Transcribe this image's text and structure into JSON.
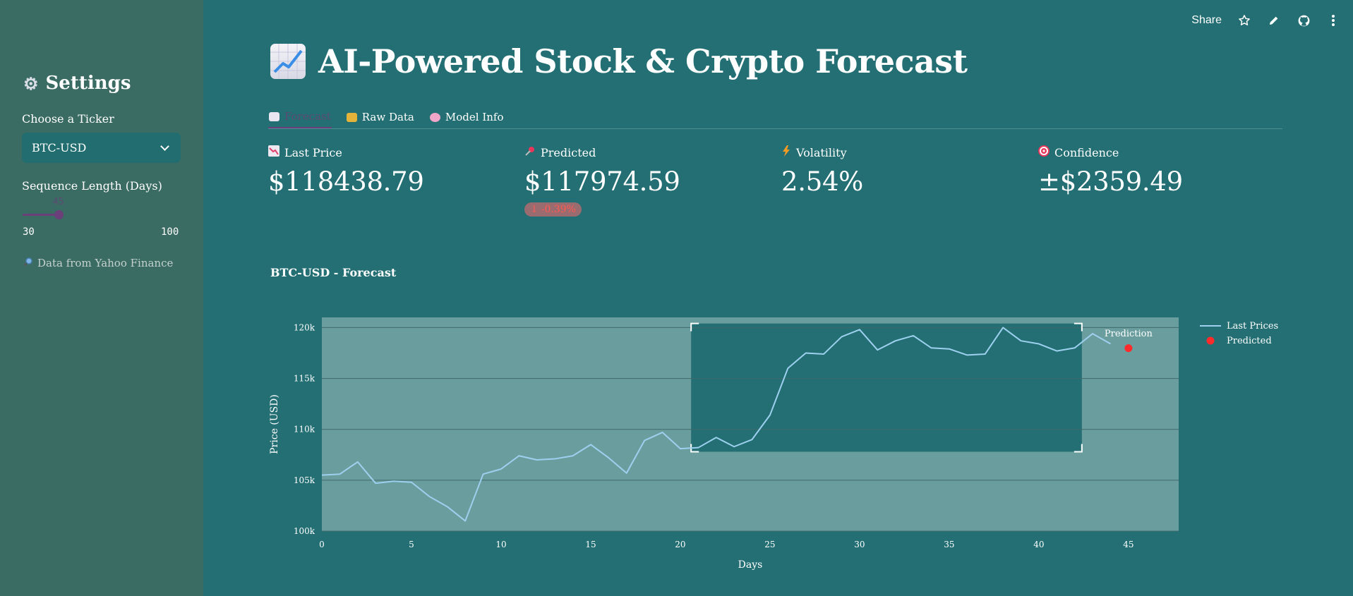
{
  "sidebar": {
    "title": "Settings",
    "ticker_label": "Choose a Ticker",
    "ticker_value": "BTC-USD",
    "seq_label": "Sequence Length (Days)",
    "seq_value": "45",
    "seq_value_num": 45,
    "seq_min": "30",
    "seq_max": "100",
    "note": "Data from Yahoo Finance"
  },
  "toolbar": {
    "share": "Share"
  },
  "page": {
    "title": "AI-Powered Stock & Crypto Forecast"
  },
  "tabs": [
    {
      "label": "Forecast",
      "active": true
    },
    {
      "label": "Raw Data",
      "active": false
    },
    {
      "label": "Model Info",
      "active": false
    }
  ],
  "metrics": [
    {
      "label": "Last Price",
      "value": "$118438.79"
    },
    {
      "label": "Predicted",
      "value": "$117974.59",
      "delta": "-0.39%"
    },
    {
      "label": "Volatility",
      "value": "2.54%"
    },
    {
      "label": "Confidence",
      "value": "±$2359.49"
    }
  ],
  "colors": {
    "background": "#236f74",
    "sidebar": "#3a6c63",
    "accent": "#6b3f7a",
    "line": "#9dd0ef",
    "predicted": "#ff2b2b",
    "plot_bg": "#6a9d9e"
  },
  "chart_data": {
    "type": "line",
    "title": "BTC-USD - Forecast",
    "xlabel": "Days",
    "ylabel": "Price (USD)",
    "xlim": [
      0,
      47.8
    ],
    "ylim": [
      100000,
      121000
    ],
    "xticks": [
      0,
      5,
      10,
      15,
      20,
      25,
      30,
      35,
      40,
      45
    ],
    "yticks": [
      100000,
      105000,
      110000,
      115000,
      120000
    ],
    "ytick_labels": [
      "100k",
      "105k",
      "110k",
      "115k",
      "120k"
    ],
    "grid": true,
    "legend_position": "right",
    "series": [
      {
        "name": "Last Prices",
        "x": [
          0,
          1,
          2,
          3,
          4,
          5,
          6,
          7,
          8,
          9,
          10,
          11,
          12,
          13,
          14,
          15,
          16,
          17,
          18,
          19,
          20,
          21,
          22,
          23,
          24,
          25,
          26,
          27,
          28,
          29,
          30,
          31,
          32,
          33,
          34,
          35,
          36,
          37,
          38,
          39,
          40,
          41,
          42,
          43,
          44
        ],
        "values": [
          105500,
          105600,
          106800,
          104700,
          104900,
          104800,
          103400,
          102400,
          101000,
          105600,
          106100,
          107400,
          107000,
          107100,
          107400,
          108500,
          107200,
          105700,
          108900,
          109700,
          108100,
          108200,
          109200,
          108300,
          109000,
          111400,
          116000,
          117500,
          117400,
          119100,
          119800,
          117800,
          118700,
          119200,
          118000,
          117900,
          117300,
          117400,
          120000,
          118700,
          118400,
          117700,
          118000,
          119400,
          118400
        ]
      },
      {
        "name": "Predicted",
        "x": [
          45
        ],
        "values": [
          117974.59
        ]
      }
    ],
    "annotations": [
      {
        "text": "Prediction",
        "x": 45,
        "y": 119200
      }
    ],
    "selection": {
      "x0": 20.6,
      "x1": 42.4,
      "y0": 107800,
      "y1": 120400
    }
  }
}
